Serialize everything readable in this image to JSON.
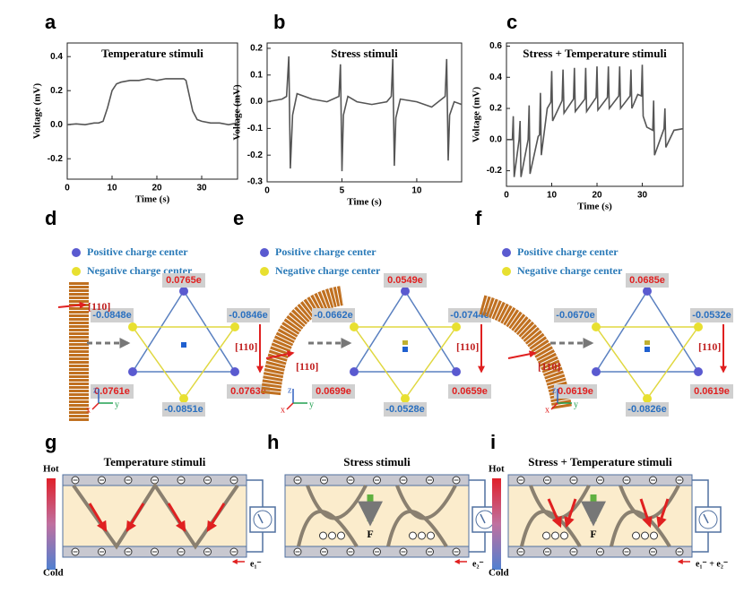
{
  "chart_data": [
    {
      "type": "line",
      "panel": "a",
      "title": "Temperature stimuli",
      "x_label": "Time (s)",
      "y_label": "Voltage (mV)",
      "x": [
        0,
        2,
        4,
        6,
        7,
        8,
        9,
        10,
        11,
        12,
        14,
        16,
        18,
        20,
        22,
        24,
        26,
        26.5,
        27,
        28,
        29,
        30,
        32,
        34,
        36,
        38
      ],
      "values": [
        0,
        0.005,
        0,
        0.01,
        0.01,
        0.02,
        0.1,
        0.2,
        0.24,
        0.25,
        0.26,
        0.26,
        0.27,
        0.26,
        0.27,
        0.27,
        0.27,
        0.26,
        0.2,
        0.08,
        0.03,
        0.02,
        0.01,
        0.01,
        0,
        0.01
      ],
      "color": "#555555",
      "xlim": [
        0,
        38
      ],
      "xticks": [
        0,
        10,
        20,
        30
      ],
      "ylim": [
        -0.32,
        0.48
      ],
      "yticks": [
        -0.2,
        {
          "value": 0,
          "label": "0.0"
        },
        0.2,
        0.4
      ]
    },
    {
      "type": "line",
      "panel": "b",
      "title": "Stress stimuli",
      "x_label": "Time (s)",
      "y_label": "Voltage (mV)",
      "x": [
        0,
        1,
        1.3,
        1.45,
        1.55,
        1.7,
        2,
        3,
        4,
        4.8,
        4.9,
        5.0,
        5.1,
        5.4,
        6,
        7,
        8,
        8.3,
        8.4,
        8.5,
        8.6,
        8.9,
        10,
        11,
        11.9,
        12.0,
        12.1,
        12.2,
        12.5,
        13
      ],
      "values": [
        0,
        0.01,
        0.02,
        0.17,
        -0.25,
        -0.05,
        0.03,
        0.01,
        0,
        0.02,
        0.14,
        -0.26,
        -0.05,
        0.02,
        0,
        -0.01,
        0,
        0.02,
        0.16,
        -0.24,
        -0.06,
        0.01,
        0,
        -0.02,
        0.02,
        0.16,
        -0.22,
        -0.05,
        0,
        -0.01
      ],
      "color": "#555555",
      "xlim": [
        0,
        13
      ],
      "xticks": [
        0,
        5,
        10
      ],
      "ylim": [
        -0.3,
        0.22
      ],
      "yticks": [
        -0.3,
        -0.2,
        -0.1,
        {
          "value": 0,
          "label": "0.0"
        },
        0.1,
        0.2
      ]
    },
    {
      "type": "line",
      "panel": "c",
      "title": "Stress + Temperature stimuli",
      "x_label": "Time (s)",
      "y_label": "Voltage (mV)",
      "x": [
        0,
        1.3,
        1.5,
        1.7,
        2.8,
        3,
        3.2,
        4.8,
        5,
        5.2,
        7,
        7.3,
        7.5,
        7.7,
        9,
        9.8,
        10,
        10.2,
        12.3,
        12.5,
        12.7,
        14.8,
        15,
        15.2,
        17.3,
        17.5,
        17.7,
        19.8,
        20,
        20.2,
        22.3,
        22.5,
        22.7,
        24.8,
        25,
        25.2,
        27.3,
        27.5,
        27.7,
        29,
        29.8,
        30,
        30.2,
        31,
        32.3,
        32.5,
        32.7,
        34.8,
        35,
        35.2,
        37,
        39
      ],
      "values": [
        0,
        0,
        0.15,
        -0.24,
        0,
        0.12,
        -0.24,
        0,
        0.22,
        -0.22,
        0.02,
        0.03,
        0.3,
        -0.1,
        0.2,
        0.24,
        0.44,
        0.12,
        0.25,
        0.45,
        0.17,
        0.26,
        0.46,
        0.18,
        0.26,
        0.46,
        0.18,
        0.27,
        0.47,
        0.19,
        0.27,
        0.47,
        0.2,
        0.28,
        0.47,
        0.2,
        0.28,
        0.45,
        0.2,
        0.29,
        0.28,
        0.48,
        0.15,
        0.08,
        0.06,
        0.25,
        -0.1,
        0.07,
        0.2,
        -0.05,
        0.06,
        0.07
      ],
      "color": "#555555",
      "xlim": [
        0,
        39
      ],
      "xticks": [
        0,
        10,
        20,
        30
      ],
      "ylim": [
        -0.3,
        0.62
      ],
      "yticks": [
        -0.2,
        {
          "value": 0,
          "label": "0.0"
        },
        0.2,
        0.4,
        0.6
      ]
    }
  ],
  "crystals": [
    {
      "panel": "d",
      "legend": [
        "Positive charge center",
        "Negative charge center"
      ],
      "charges": [
        "0.0765e",
        "-0.0848e",
        "-0.0846e",
        "0.0761e",
        "0.0763e",
        "-0.0851e"
      ],
      "direction_labels": [
        "[110]",
        "[110]"
      ],
      "axis_labels": [
        "z",
        "x",
        "y"
      ]
    },
    {
      "panel": "e",
      "legend": [
        "Positive charge center",
        "Negative charge center"
      ],
      "charges": [
        "0.0549e",
        "-0.0662e",
        "-0.0744e",
        "0.0699e",
        "0.0659e",
        "-0.0528e"
      ],
      "direction_labels": [
        "[110]",
        "[110]"
      ],
      "axis_labels": [
        "z",
        "x",
        "y"
      ]
    },
    {
      "panel": "f",
      "legend": [
        "Positive charge center",
        "Negative charge center"
      ],
      "charges": [
        "0.0685e",
        "-0.0670e",
        "-0.0532e",
        "0.0619e",
        "0.0619e",
        "-0.0826e"
      ],
      "direction_labels": [
        "[110]",
        "[110]"
      ],
      "axis_labels": [
        "z",
        "x",
        "y"
      ]
    }
  ],
  "devices": [
    {
      "panel": "g",
      "title": "Temperature stimuli",
      "hot": "Hot",
      "cold": "Cold",
      "current": "e₁⁻"
    },
    {
      "panel": "h",
      "title": "Stress stimuli",
      "force": "F",
      "current": "e₂⁻"
    },
    {
      "panel": "i",
      "title": "Stress + Temperature stimuli",
      "hot": "Hot",
      "cold": "Cold",
      "force": "F",
      "current": "e₁⁻ + e₂⁻"
    }
  ]
}
